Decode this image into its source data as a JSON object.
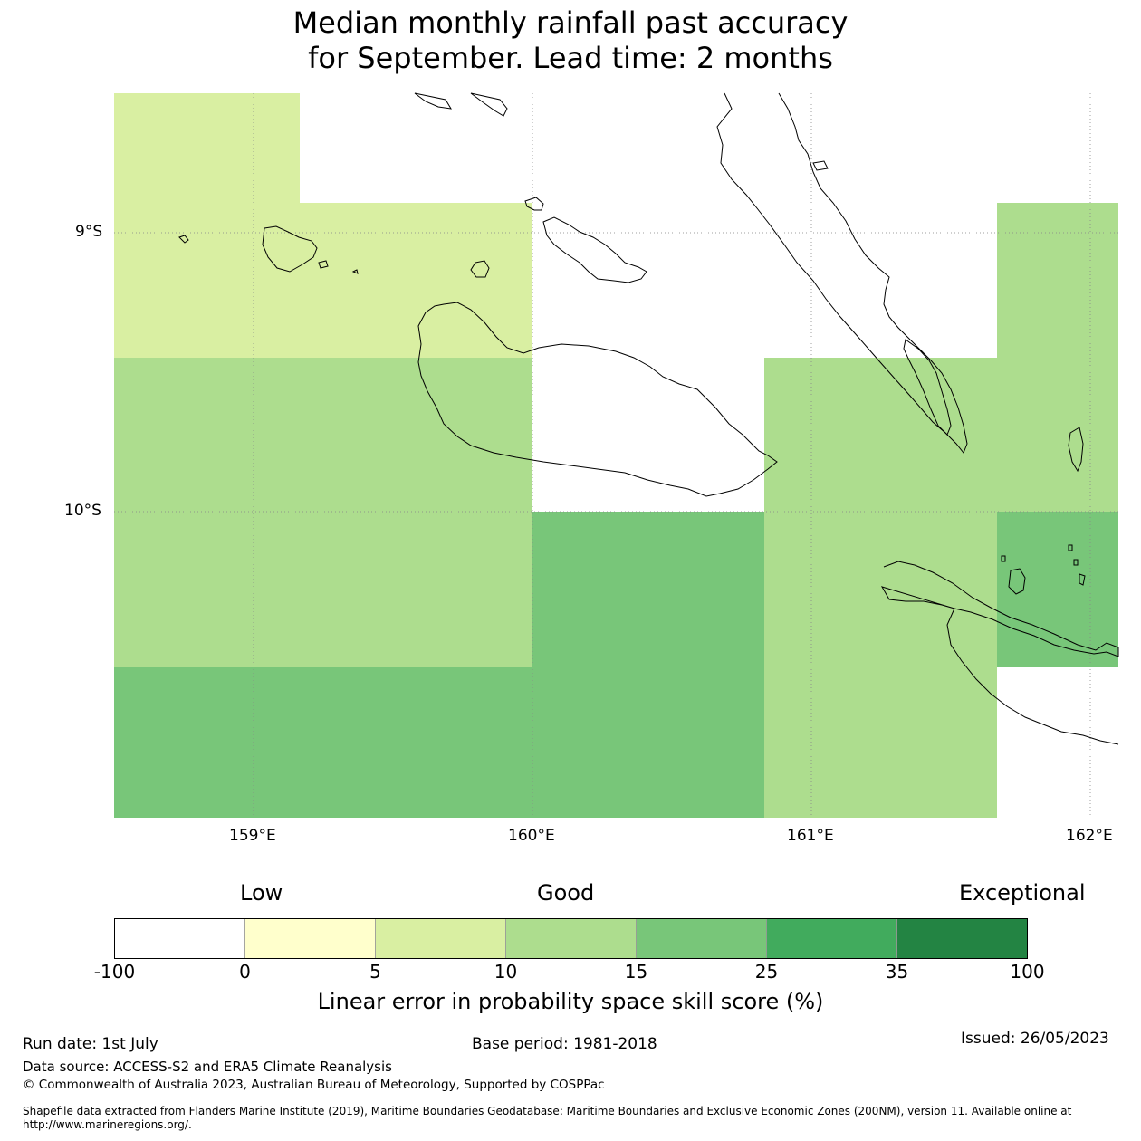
{
  "title": {
    "line1": "Median monthly rainfall past accuracy",
    "line2": "for September. Lead time: 2 months"
  },
  "map": {
    "lat_labels": [
      "9°S",
      "10°S"
    ],
    "lon_labels": [
      "159°E",
      "160°E",
      "161°E",
      "162°E"
    ],
    "cells": [
      {
        "row": 0,
        "col": 0,
        "category": "5-10",
        "color": "#d9efa2"
      },
      {
        "row": 1,
        "col": 0,
        "category": "5-10",
        "color": "#d9efa2"
      },
      {
        "row": 1,
        "col": 1,
        "category": "5-10",
        "color": "#d9efa2"
      },
      {
        "row": 1,
        "col": 4,
        "category": "10-15",
        "color": "#addd8e"
      },
      {
        "row": 2,
        "col": 0,
        "category": "10-15",
        "color": "#addd8e"
      },
      {
        "row": 2,
        "col": 1,
        "category": "10-15",
        "color": "#addd8e"
      },
      {
        "row": 2,
        "col": 3,
        "category": "10-15",
        "color": "#addd8e"
      },
      {
        "row": 2,
        "col": 4,
        "category": "10-15",
        "color": "#addd8e"
      },
      {
        "row": 3,
        "col": 0,
        "category": "10-15",
        "color": "#addd8e"
      },
      {
        "row": 3,
        "col": 1,
        "category": "10-15",
        "color": "#addd8e"
      },
      {
        "row": 3,
        "col": 2,
        "category": "15-25",
        "color": "#78c679"
      },
      {
        "row": 3,
        "col": 3,
        "category": "10-15",
        "color": "#addd8e"
      },
      {
        "row": 3,
        "col": 4,
        "category": "15-25",
        "color": "#78c679"
      },
      {
        "row": 4,
        "col": 0,
        "category": "15-25",
        "color": "#78c679"
      },
      {
        "row": 4,
        "col": 1,
        "category": "15-25",
        "color": "#78c679"
      },
      {
        "row": 4,
        "col": 2,
        "category": "15-25",
        "color": "#78c679"
      },
      {
        "row": 4,
        "col": 3,
        "category": "10-15",
        "color": "#addd8e"
      }
    ]
  },
  "colorbar": {
    "labels_top": {
      "low": "Low",
      "good": "Good",
      "exceptional": "Exceptional"
    },
    "ticks": [
      "-100",
      "0",
      "5",
      "10",
      "15",
      "25",
      "35",
      "100"
    ],
    "colors": [
      "#ffffff",
      "#ffffcc",
      "#d9efa2",
      "#addd8e",
      "#78c679",
      "#41ab5d",
      "#238443"
    ],
    "title": "Linear error in probability space skill score (%)"
  },
  "footer": {
    "run_date": "Run date: 1st July",
    "base_period": "Base period: 1981-2018",
    "issued": "Issued: 26/05/2023",
    "data_source": "Data source: ACCESS-S2 and ERA5 Climate Reanalysis",
    "copyright": "© Commonwealth of Australia 2023, Australian Bureau of Meteorology, Supported by COSPPac",
    "shapefile": "Shapefile data extracted from Flanders Marine Institute (2019), Maritime Boundaries Geodatabase: Maritime Boundaries and Exclusive Economic Zones (200NM), version 11. Available online at http://www.marineregions.org/."
  }
}
